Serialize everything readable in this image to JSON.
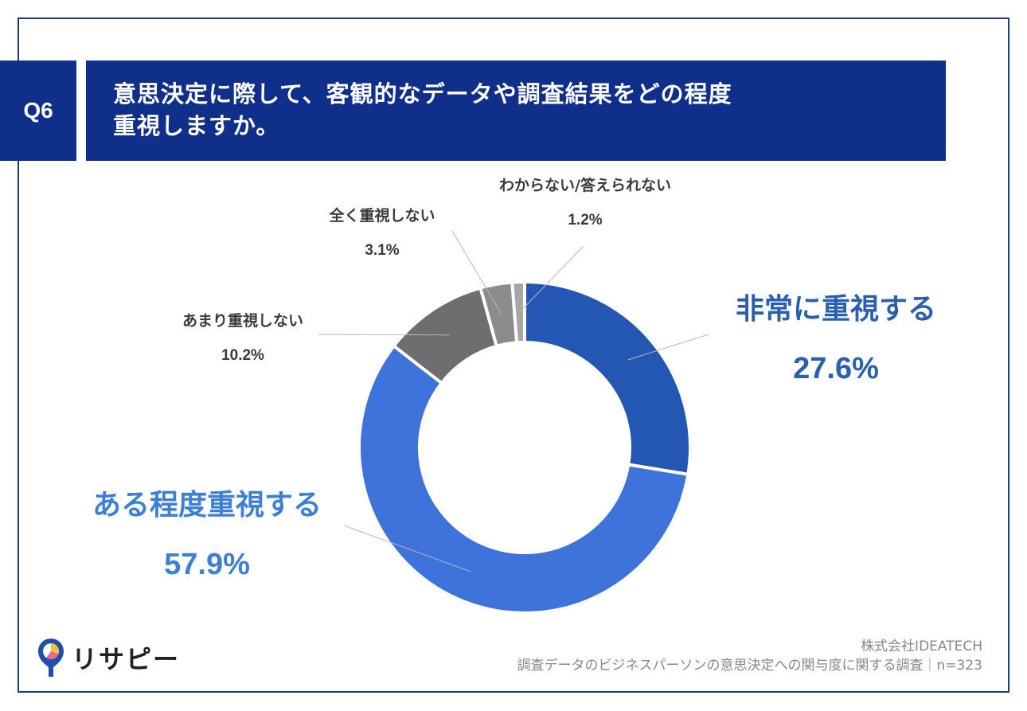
{
  "question": {
    "number": "Q6",
    "title_line1": "意思決定に際して、客観的なデータや調査結果をどの程度",
    "title_line2": "重視しますか。"
  },
  "chart_data": {
    "type": "pie",
    "variant": "donut",
    "start_angle_deg": 0,
    "direction": "clockwise",
    "slices": [
      {
        "label": "非常に重視する",
        "value": 27.6,
        "value_label": "27.6%",
        "color": "#2457b4"
      },
      {
        "label": "ある程度重視する",
        "value": 57.9,
        "value_label": "57.9%",
        "color": "#3e73dc"
      },
      {
        "label": "あまり重視しない",
        "value": 10.2,
        "value_label": "10.2%",
        "color": "#6e6e6e"
      },
      {
        "label": "全く重視しない",
        "value": 3.1,
        "value_label": "3.1%",
        "color": "#8c8c8c"
      },
      {
        "label": "わからない/答えられない",
        "value": 1.2,
        "value_label": "1.2%",
        "color": "#a6a6a6"
      }
    ]
  },
  "brand": {
    "logo_text": "リサピー",
    "logo_icon": "map-pin-icon",
    "colors": {
      "navy": "#0f2f8a",
      "pin": "#1f4fa8",
      "pin_fill_yellow": "#f2c230",
      "pin_fill_pink": "#e86a8a"
    }
  },
  "footer": {
    "company": "株式会社IDEATECH",
    "survey": "調査データのビジネスパーソンの意思決定への関与度に関する調査｜n=323"
  }
}
